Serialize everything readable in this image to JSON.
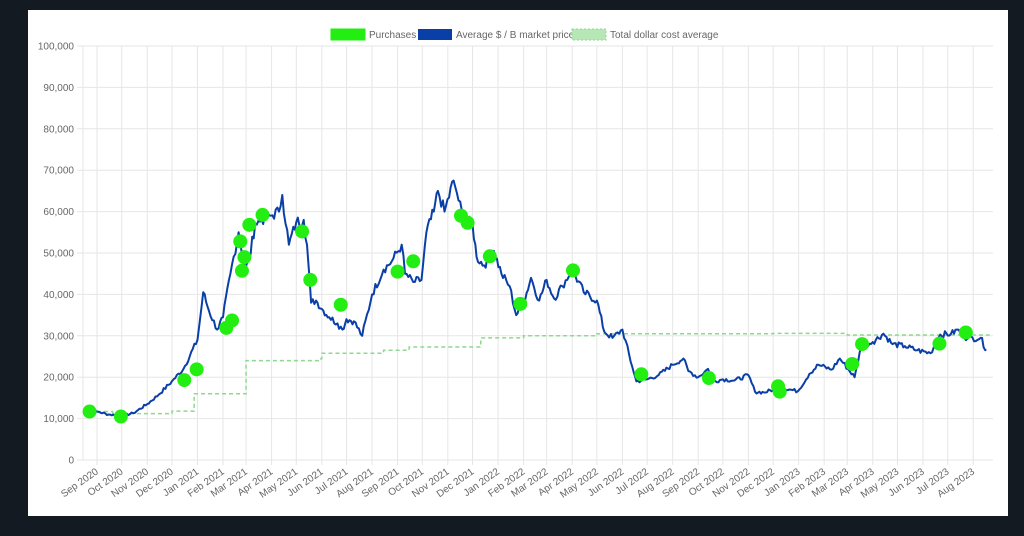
{
  "colors": {
    "background": "#141a22",
    "card": "#ffffff",
    "price_line": "#0a3fa8",
    "purchase_marker": "#22ee11",
    "dca_line": "#8fd88f",
    "grid": "#e6e6e6",
    "tick_text": "#666666"
  },
  "chart_data": {
    "type": "line",
    "legend_position": "top-center",
    "grid": true,
    "legend": [
      {
        "label": "Purchases",
        "style": "marker"
      },
      {
        "label": "Average $ / B market price",
        "style": "line"
      },
      {
        "label": "Total dollar cost average",
        "style": "dashed"
      }
    ],
    "ylim": [
      0,
      100000
    ],
    "y_ticks": [
      "100,000",
      "90,000",
      "80,000",
      "70,000",
      "60,000",
      "50,000",
      "40,000",
      "30,000",
      "20,000",
      "10,000",
      "0"
    ],
    "y_tick_values": [
      100000,
      90000,
      80000,
      70000,
      60000,
      50000,
      40000,
      30000,
      20000,
      10000,
      0
    ],
    "xlim": [
      "2020-08-15",
      "2023-08-25"
    ],
    "x_ticks": [
      {
        "label": "Sep 2020",
        "date": "2020-09-01"
      },
      {
        "label": "Oct 2020",
        "date": "2020-10-01"
      },
      {
        "label": "Nov 2020",
        "date": "2020-11-01"
      },
      {
        "label": "Dec 2020",
        "date": "2020-12-01"
      },
      {
        "label": "Jan 2021",
        "date": "2021-01-01"
      },
      {
        "label": "Feb 2021",
        "date": "2021-02-01"
      },
      {
        "label": "Mar 2021",
        "date": "2021-03-01"
      },
      {
        "label": "Apr 2021",
        "date": "2021-04-01"
      },
      {
        "label": "May 2021",
        "date": "2021-05-01"
      },
      {
        "label": "Jun 2021",
        "date": "2021-06-01"
      },
      {
        "label": "Jul 2021",
        "date": "2021-07-01"
      },
      {
        "label": "Aug 2021",
        "date": "2021-08-01"
      },
      {
        "label": "Sep 2021",
        "date": "2021-09-01"
      },
      {
        "label": "Oct 2021",
        "date": "2021-10-01"
      },
      {
        "label": "Nov 2021",
        "date": "2021-11-01"
      },
      {
        "label": "Dec 2021",
        "date": "2021-12-01"
      },
      {
        "label": "Jan 2022",
        "date": "2022-01-01"
      },
      {
        "label": "Feb 2022",
        "date": "2022-02-01"
      },
      {
        "label": "Mar 2022",
        "date": "2022-03-01"
      },
      {
        "label": "Apr 2022",
        "date": "2022-04-01"
      },
      {
        "label": "May 2022",
        "date": "2022-05-01"
      },
      {
        "label": "Jun 2022",
        "date": "2022-06-01"
      },
      {
        "label": "Jul 2022",
        "date": "2022-07-01"
      },
      {
        "label": "Aug 2022",
        "date": "2022-08-01"
      },
      {
        "label": "Sep 2022",
        "date": "2022-09-01"
      },
      {
        "label": "Oct 2022",
        "date": "2022-10-01"
      },
      {
        "label": "Nov 2022",
        "date": "2022-11-01"
      },
      {
        "label": "Dec 2022",
        "date": "2022-12-01"
      },
      {
        "label": "Jan 2023",
        "date": "2023-01-01"
      },
      {
        "label": "Feb 2023",
        "date": "2023-02-01"
      },
      {
        "label": "Mar 2023",
        "date": "2023-03-01"
      },
      {
        "label": "Apr 2023",
        "date": "2023-04-01"
      },
      {
        "label": "May 2023",
        "date": "2023-05-01"
      },
      {
        "label": "Jun 2023",
        "date": "2023-06-01"
      },
      {
        "label": "Jul 2023",
        "date": "2023-07-01"
      },
      {
        "label": "Aug 2023",
        "date": "2023-08-01"
      }
    ],
    "series": [
      {
        "name": "Average $ / B market price",
        "type": "line",
        "points": [
          [
            "2020-08-15",
            11800
          ],
          [
            "2020-09-01",
            11700
          ],
          [
            "2020-09-15",
            11000
          ],
          [
            "2020-10-01",
            10700
          ],
          [
            "2020-10-15",
            11300
          ],
          [
            "2020-11-01",
            13500
          ],
          [
            "2020-11-15",
            15800
          ],
          [
            "2020-12-01",
            19000
          ],
          [
            "2020-12-15",
            22000
          ],
          [
            "2021-01-01",
            29000
          ],
          [
            "2021-01-08",
            40500
          ],
          [
            "2021-01-15",
            36000
          ],
          [
            "2021-01-25",
            31500
          ],
          [
            "2021-02-01",
            34500
          ],
          [
            "2021-02-10",
            45000
          ],
          [
            "2021-02-20",
            55000
          ],
          [
            "2021-02-28",
            46000
          ],
          [
            "2021-03-05",
            48500
          ],
          [
            "2021-03-12",
            57000
          ],
          [
            "2021-03-20",
            58000
          ],
          [
            "2021-03-31",
            59000
          ],
          [
            "2021-04-10",
            60000
          ],
          [
            "2021-04-14",
            64000
          ],
          [
            "2021-04-22",
            52000
          ],
          [
            "2021-05-01",
            57500
          ],
          [
            "2021-05-10",
            58000
          ],
          [
            "2021-05-14",
            52000
          ],
          [
            "2021-05-19",
            38000
          ],
          [
            "2021-05-25",
            38500
          ],
          [
            "2021-06-01",
            36500
          ],
          [
            "2021-06-10",
            34500
          ],
          [
            "2021-06-20",
            33000
          ],
          [
            "2021-06-26",
            31500
          ],
          [
            "2021-07-01",
            34000
          ],
          [
            "2021-07-10",
            33500
          ],
          [
            "2021-07-20",
            30000
          ],
          [
            "2021-08-01",
            40000
          ],
          [
            "2021-08-15",
            46000
          ],
          [
            "2021-08-25",
            48000
          ],
          [
            "2021-09-06",
            52000
          ],
          [
            "2021-09-10",
            45000
          ],
          [
            "2021-09-20",
            43000
          ],
          [
            "2021-09-30",
            43500
          ],
          [
            "2021-10-06",
            55000
          ],
          [
            "2021-10-15",
            60000
          ],
          [
            "2021-10-20",
            65000
          ],
          [
            "2021-10-28",
            60000
          ],
          [
            "2021-11-08",
            67500
          ],
          [
            "2021-11-12",
            64500
          ],
          [
            "2021-11-20",
            58000
          ],
          [
            "2021-12-01",
            57000
          ],
          [
            "2021-12-06",
            49000
          ],
          [
            "2021-12-15",
            47000
          ],
          [
            "2021-12-27",
            50500
          ],
          [
            "2022-01-05",
            45000
          ],
          [
            "2022-01-15",
            42000
          ],
          [
            "2022-01-23",
            35000
          ],
          [
            "2022-02-01",
            38000
          ],
          [
            "2022-02-10",
            44000
          ],
          [
            "2022-02-20",
            38500
          ],
          [
            "2022-03-01",
            43500
          ],
          [
            "2022-03-10",
            39000
          ],
          [
            "2022-03-20",
            42000
          ],
          [
            "2022-04-01",
            46000
          ],
          [
            "2022-04-15",
            40500
          ],
          [
            "2022-05-01",
            38500
          ],
          [
            "2022-05-10",
            31000
          ],
          [
            "2022-05-20",
            29500
          ],
          [
            "2022-06-01",
            31500
          ],
          [
            "2022-06-13",
            22500
          ],
          [
            "2022-06-18",
            19000
          ],
          [
            "2022-07-01",
            19500
          ],
          [
            "2022-07-15",
            20500
          ],
          [
            "2022-08-01",
            23000
          ],
          [
            "2022-08-14",
            24500
          ],
          [
            "2022-08-20",
            21500
          ],
          [
            "2022-09-01",
            20000
          ],
          [
            "2022-09-13",
            22000
          ],
          [
            "2022-09-20",
            19000
          ],
          [
            "2022-10-01",
            19500
          ],
          [
            "2022-10-15",
            19200
          ],
          [
            "2022-11-01",
            20500
          ],
          [
            "2022-11-09",
            16500
          ],
          [
            "2022-11-20",
            16300
          ],
          [
            "2022-12-01",
            17000
          ],
          [
            "2022-12-15",
            17300
          ],
          [
            "2022-12-31",
            16600
          ],
          [
            "2023-01-14",
            20800
          ],
          [
            "2023-01-25",
            23000
          ],
          [
            "2023-02-10",
            21800
          ],
          [
            "2023-02-20",
            24500
          ],
          [
            "2023-03-10",
            20000
          ],
          [
            "2023-03-18",
            27500
          ],
          [
            "2023-04-01",
            28500
          ],
          [
            "2023-04-14",
            30500
          ],
          [
            "2023-04-25",
            28000
          ],
          [
            "2023-05-10",
            27500
          ],
          [
            "2023-05-25",
            26500
          ],
          [
            "2023-06-10",
            25800
          ],
          [
            "2023-06-22",
            30300
          ],
          [
            "2023-07-05",
            30500
          ],
          [
            "2023-07-14",
            31500
          ],
          [
            "2023-07-25",
            29300
          ],
          [
            "2023-08-10",
            29500
          ],
          [
            "2023-08-17",
            26500
          ]
        ]
      },
      {
        "name": "Total dollar cost average",
        "type": "step",
        "points": [
          [
            "2020-08-15",
            11700
          ],
          [
            "2020-09-20",
            11200
          ],
          [
            "2020-12-01",
            11800
          ],
          [
            "2020-12-27",
            11800
          ],
          [
            "2020-12-28",
            16000
          ],
          [
            "2021-02-28",
            16000
          ],
          [
            "2021-03-01",
            24000
          ],
          [
            "2021-05-31",
            24500
          ],
          [
            "2021-06-01",
            25800
          ],
          [
            "2021-08-15",
            26500
          ],
          [
            "2021-09-15",
            27300
          ],
          [
            "2021-12-10",
            27400
          ],
          [
            "2021-12-11",
            29500
          ],
          [
            "2022-02-01",
            30000
          ],
          [
            "2022-05-01",
            30500
          ],
          [
            "2022-12-01",
            30600
          ],
          [
            "2023-03-01",
            30200
          ],
          [
            "2023-08-20",
            30000
          ]
        ]
      },
      {
        "name": "Purchases",
        "type": "scatter",
        "points": [
          [
            "2020-08-23",
            11700
          ],
          [
            "2020-09-30",
            10500
          ],
          [
            "2020-12-16",
            19300
          ],
          [
            "2020-12-31",
            21900
          ],
          [
            "2021-02-05",
            31900
          ],
          [
            "2021-02-12",
            33700
          ],
          [
            "2021-02-22",
            52800
          ],
          [
            "2021-02-24",
            45700
          ],
          [
            "2021-02-27",
            49000
          ],
          [
            "2021-03-05",
            56800
          ],
          [
            "2021-03-21",
            59200
          ],
          [
            "2021-05-08",
            55200
          ],
          [
            "2021-05-18",
            43500
          ],
          [
            "2021-06-24",
            37500
          ],
          [
            "2021-09-01",
            45500
          ],
          [
            "2021-09-20",
            48000
          ],
          [
            "2021-11-17",
            59000
          ],
          [
            "2021-11-25",
            57300
          ],
          [
            "2021-12-22",
            49200
          ],
          [
            "2022-01-28",
            37700
          ],
          [
            "2022-04-02",
            45800
          ],
          [
            "2022-06-24",
            20700
          ],
          [
            "2022-09-14",
            19800
          ],
          [
            "2022-12-07",
            17800
          ],
          [
            "2022-12-09",
            16500
          ],
          [
            "2023-03-07",
            23200
          ],
          [
            "2023-03-19",
            28000
          ],
          [
            "2023-06-21",
            28100
          ],
          [
            "2023-07-23",
            30800
          ]
        ]
      }
    ]
  }
}
